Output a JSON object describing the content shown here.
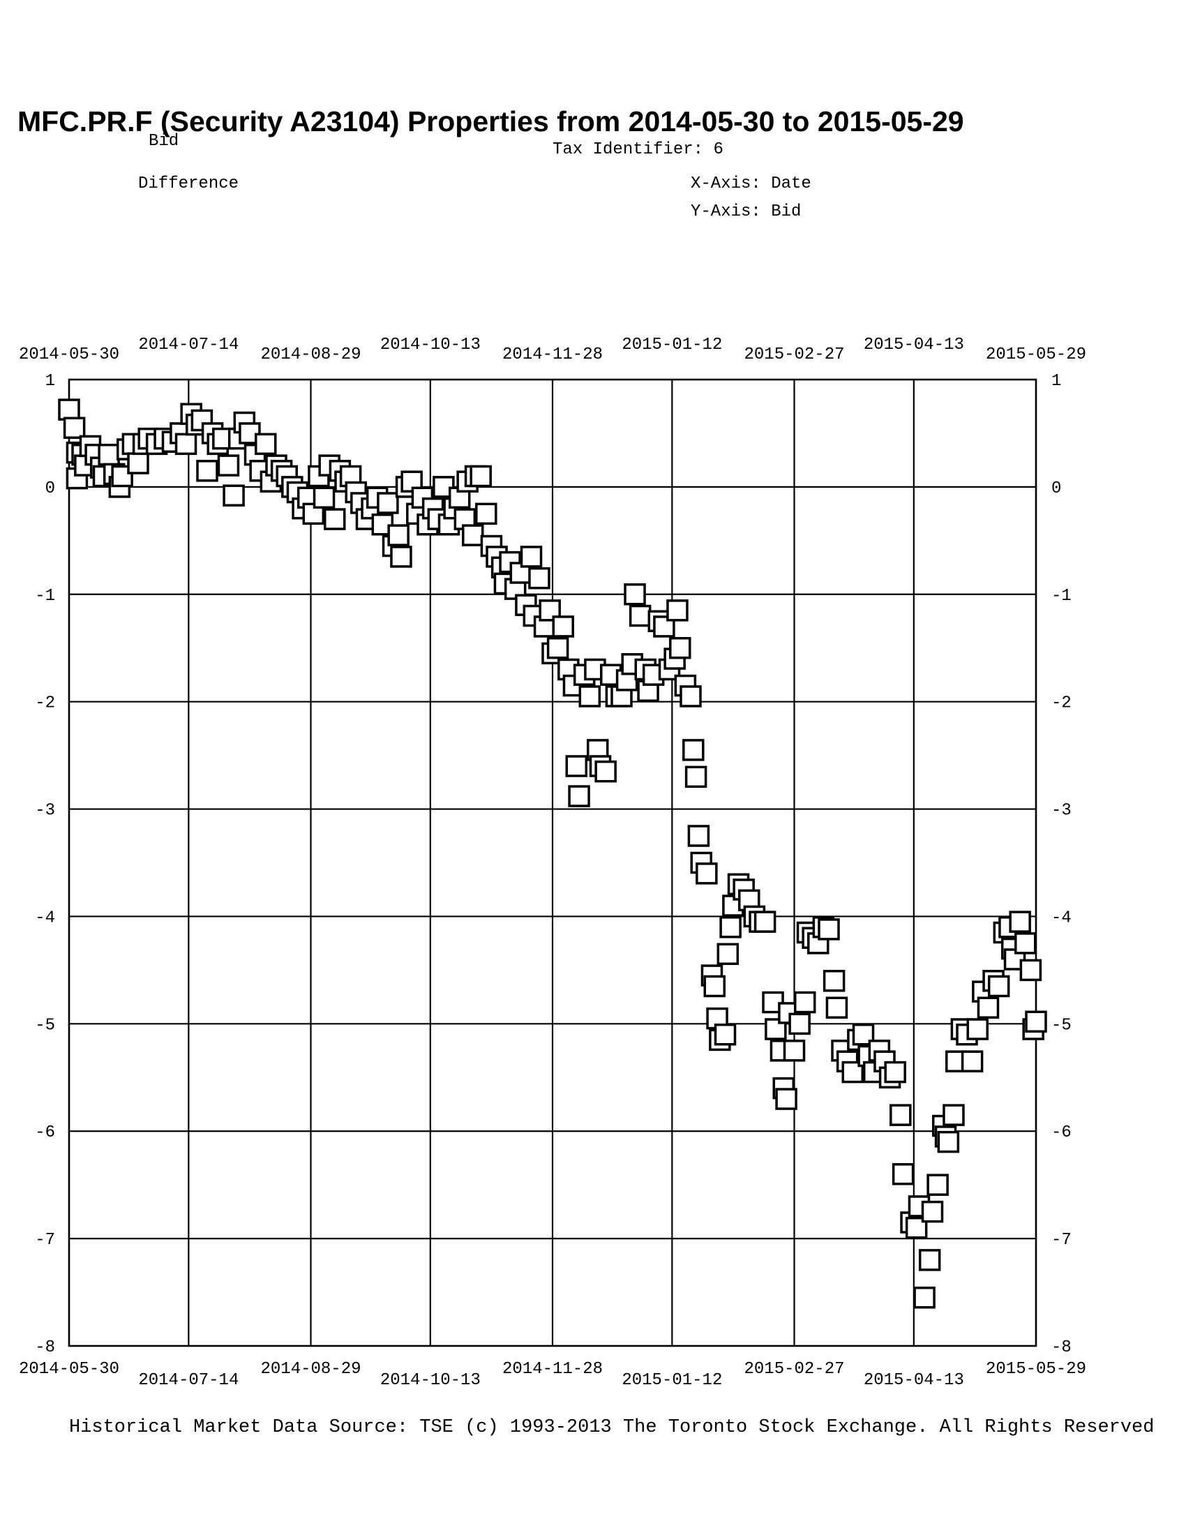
{
  "chart_data": {
    "type": "scatter",
    "title": "MFC.PR.F (Security A23104) Properties from 2014-05-30 to 2015-05-29",
    "subtitle": "Bid",
    "tax_identifier": "Tax Identifier: 6",
    "y_label_note": "Difference",
    "x_axis_label": "X-Axis: Date",
    "y_axis_label": "Y-Axis:  Bid",
    "footer": "Historical Market Data Source: TSE (c) 1993-2013 The Toronto Stock Exchange. All Rights Reserved",
    "color": "#000000",
    "grid": true,
    "xlim": [
      "2014-05-30",
      "2015-05-29"
    ],
    "xticks": [
      "2014-05-30",
      "2014-07-14",
      "2014-08-29",
      "2014-10-13",
      "2014-11-28",
      "2015-01-12",
      "2015-02-27",
      "2015-04-13",
      "2015-05-29"
    ],
    "ylim": [
      -8,
      1
    ],
    "yticks": [
      -8,
      -7,
      -6,
      -5,
      -4,
      -3,
      -2,
      -1,
      0,
      1
    ],
    "x": [
      "2014-05-30",
      "2014-06-01",
      "2014-06-02",
      "2014-06-02",
      "2014-06-04",
      "2014-06-05",
      "2014-06-07",
      "2014-06-09",
      "2014-06-11",
      "2014-06-12",
      "2014-06-14",
      "2014-06-16",
      "2014-06-18",
      "2014-06-19",
      "2014-06-21",
      "2014-06-23",
      "2014-06-25",
      "2014-06-27",
      "2014-06-29",
      "2014-07-02",
      "2014-07-05",
      "2014-07-08",
      "2014-07-11",
      "2014-07-13",
      "2014-07-15",
      "2014-07-17",
      "2014-07-19",
      "2014-07-21",
      "2014-07-23",
      "2014-07-25",
      "2014-07-27",
      "2014-07-29",
      "2014-07-31",
      "2014-08-02",
      "2014-08-04",
      "2014-08-06",
      "2014-08-08",
      "2014-08-10",
      "2014-08-12",
      "2014-08-14",
      "2014-08-16",
      "2014-08-18",
      "2014-08-20",
      "2014-08-22",
      "2014-08-24",
      "2014-08-26",
      "2014-08-28",
      "2014-08-30",
      "2014-09-01",
      "2014-09-03",
      "2014-09-05",
      "2014-09-07",
      "2014-09-09",
      "2014-09-11",
      "2014-09-13",
      "2014-09-15",
      "2014-09-17",
      "2014-09-19",
      "2014-09-21",
      "2014-09-23",
      "2014-09-25",
      "2014-09-27",
      "2014-09-29",
      "2014-10-01",
      "2014-10-02",
      "2014-10-04",
      "2014-10-06",
      "2014-10-08",
      "2014-10-10",
      "2014-10-12",
      "2014-10-14",
      "2014-10-16",
      "2014-10-18",
      "2014-10-20",
      "2014-10-22",
      "2014-10-24",
      "2014-10-26",
      "2014-10-27",
      "2014-10-29",
      "2014-10-30",
      "2014-11-01",
      "2014-11-03",
      "2014-11-05",
      "2014-11-07",
      "2014-11-09",
      "2014-11-10",
      "2014-11-12",
      "2014-11-14",
      "2014-11-16",
      "2014-11-18",
      "2014-11-20",
      "2014-11-21",
      "2014-11-23",
      "2014-11-25",
      "2014-11-27",
      "2014-11-28",
      "2014-11-30",
      "2014-12-02",
      "2014-12-04",
      "2014-12-06",
      "2014-12-07",
      "2014-12-08",
      "2014-12-10",
      "2014-12-12",
      "2014-12-14",
      "2014-12-15",
      "2014-12-16",
      "2014-12-18",
      "2014-12-20",
      "2014-12-22",
      "2014-12-24",
      "2014-12-26",
      "2014-12-28",
      "2014-12-29",
      "2014-12-31",
      "2015-01-02",
      "2015-01-03",
      "2015-01-05",
      "2015-01-07",
      "2015-01-09",
      "2015-01-11",
      "2015-01-13",
      "2015-01-14",
      "2015-01-15",
      "2015-01-17",
      "2015-01-19",
      "2015-01-20",
      "2015-01-21",
      "2015-01-22",
      "2015-01-23",
      "2015-01-25",
      "2015-01-27",
      "2015-01-28",
      "2015-01-29",
      "2015-01-30",
      "2015-02-01",
      "2015-02-02",
      "2015-02-03",
      "2015-02-04",
      "2015-02-06",
      "2015-02-08",
      "2015-02-10",
      "2015-02-12",
      "2015-02-14",
      "2015-02-16",
      "2015-02-19",
      "2015-02-20",
      "2015-02-22",
      "2015-02-23",
      "2015-02-24",
      "2015-02-25",
      "2015-02-27",
      "2015-03-01",
      "2015-03-03",
      "2015-03-04",
      "2015-03-06",
      "2015-03-08",
      "2015-03-10",
      "2015-03-12",
      "2015-03-14",
      "2015-03-15",
      "2015-03-17",
      "2015-03-19",
      "2015-03-21",
      "2015-03-23",
      "2015-03-25",
      "2015-03-27",
      "2015-03-29",
      "2015-03-31",
      "2015-04-02",
      "2015-04-04",
      "2015-04-06",
      "2015-04-08",
      "2015-04-09",
      "2015-04-12",
      "2015-04-14",
      "2015-04-15",
      "2015-04-17",
      "2015-04-19",
      "2015-04-20",
      "2015-04-22",
      "2015-04-24",
      "2015-04-25",
      "2015-04-26",
      "2015-04-28",
      "2015-04-29",
      "2015-05-01",
      "2015-05-03",
      "2015-05-05",
      "2015-05-07",
      "2015-05-09",
      "2015-05-11",
      "2015-05-13",
      "2015-05-15",
      "2015-05-17",
      "2015-05-19",
      "2015-05-20",
      "2015-05-21",
      "2015-05-23",
      "2015-05-25",
      "2015-05-27",
      "2015-05-28",
      "2015-05-29"
    ],
    "values": [
      0.72,
      0.55,
      0.32,
      0.08,
      0.3,
      0.2,
      0.38,
      0.3,
      0.18,
      0.1,
      0.3,
      0.12,
      0.0,
      0.1,
      0.35,
      0.4,
      0.22,
      0.4,
      0.45,
      0.4,
      0.45,
      0.42,
      0.5,
      0.4,
      0.68,
      0.58,
      0.62,
      0.15,
      0.5,
      0.4,
      0.45,
      0.2,
      -0.08,
      0.45,
      0.6,
      0.5,
      0.3,
      0.15,
      0.4,
      0.05,
      0.2,
      0.15,
      0.1,
      0.0,
      -0.05,
      -0.2,
      -0.1,
      -0.25,
      0.1,
      -0.1,
      0.2,
      -0.3,
      0.15,
      0.05,
      0.1,
      -0.05,
      -0.15,
      -0.3,
      -0.2,
      -0.1,
      -0.35,
      -0.15,
      -0.55,
      -0.45,
      -0.65,
      0.0,
      0.05,
      -0.25,
      -0.1,
      -0.35,
      -0.2,
      -0.3,
      0.0,
      -0.35,
      -0.2,
      -0.1,
      -0.3,
      0.05,
      -0.45,
      0.1,
      0.1,
      -0.25,
      -0.55,
      -0.65,
      -0.75,
      -0.9,
      -0.7,
      -0.95,
      -0.8,
      -1.1,
      -0.65,
      -1.2,
      -0.85,
      -1.3,
      -1.15,
      -1.55,
      -1.5,
      -1.3,
      -1.7,
      -1.85,
      -2.6,
      -2.88,
      -1.75,
      -1.95,
      -1.7,
      -2.45,
      -2.6,
      -2.65,
      -1.75,
      -1.95,
      -1.95,
      -1.8,
      -1.65,
      -1.0,
      -1.2,
      -1.7,
      -1.9,
      -1.75,
      -1.25,
      -1.3,
      -1.7,
      -1.6,
      -1.15,
      -1.5,
      -1.85,
      -1.95,
      -2.45,
      -2.7,
      -3.25,
      -3.5,
      -3.6,
      -4.55,
      -4.65,
      -4.95,
      -5.15,
      -5.1,
      -4.35,
      -4.1,
      -3.9,
      -3.7,
      -3.75,
      -3.85,
      -4.0,
      -4.05,
      -4.05,
      -4.8,
      -5.05,
      -5.25,
      -5.6,
      -5.7,
      -4.9,
      -5.25,
      -5.0,
      -4.8,
      -4.15,
      -4.2,
      -4.25,
      -4.1,
      -4.12,
      -4.6,
      -4.85,
      -5.25,
      -5.35,
      -5.45,
      -5.15,
      -5.1,
      -5.3,
      -5.45,
      -5.25,
      -5.35,
      -5.5,
      -5.45,
      -5.85,
      -6.4,
      -6.85,
      -6.9,
      -6.7,
      -7.55,
      -7.2,
      -6.75,
      -6.5,
      -5.95,
      -6.05,
      -6.1,
      -5.85,
      -5.35,
      -5.05,
      -5.1,
      -5.35,
      -5.05,
      -4.7,
      -4.85,
      -4.6,
      -4.65,
      -4.15,
      -4.1,
      -4.3,
      -4.4,
      -4.05,
      -4.25,
      -4.5,
      -5.05,
      -4.98
    ]
  }
}
